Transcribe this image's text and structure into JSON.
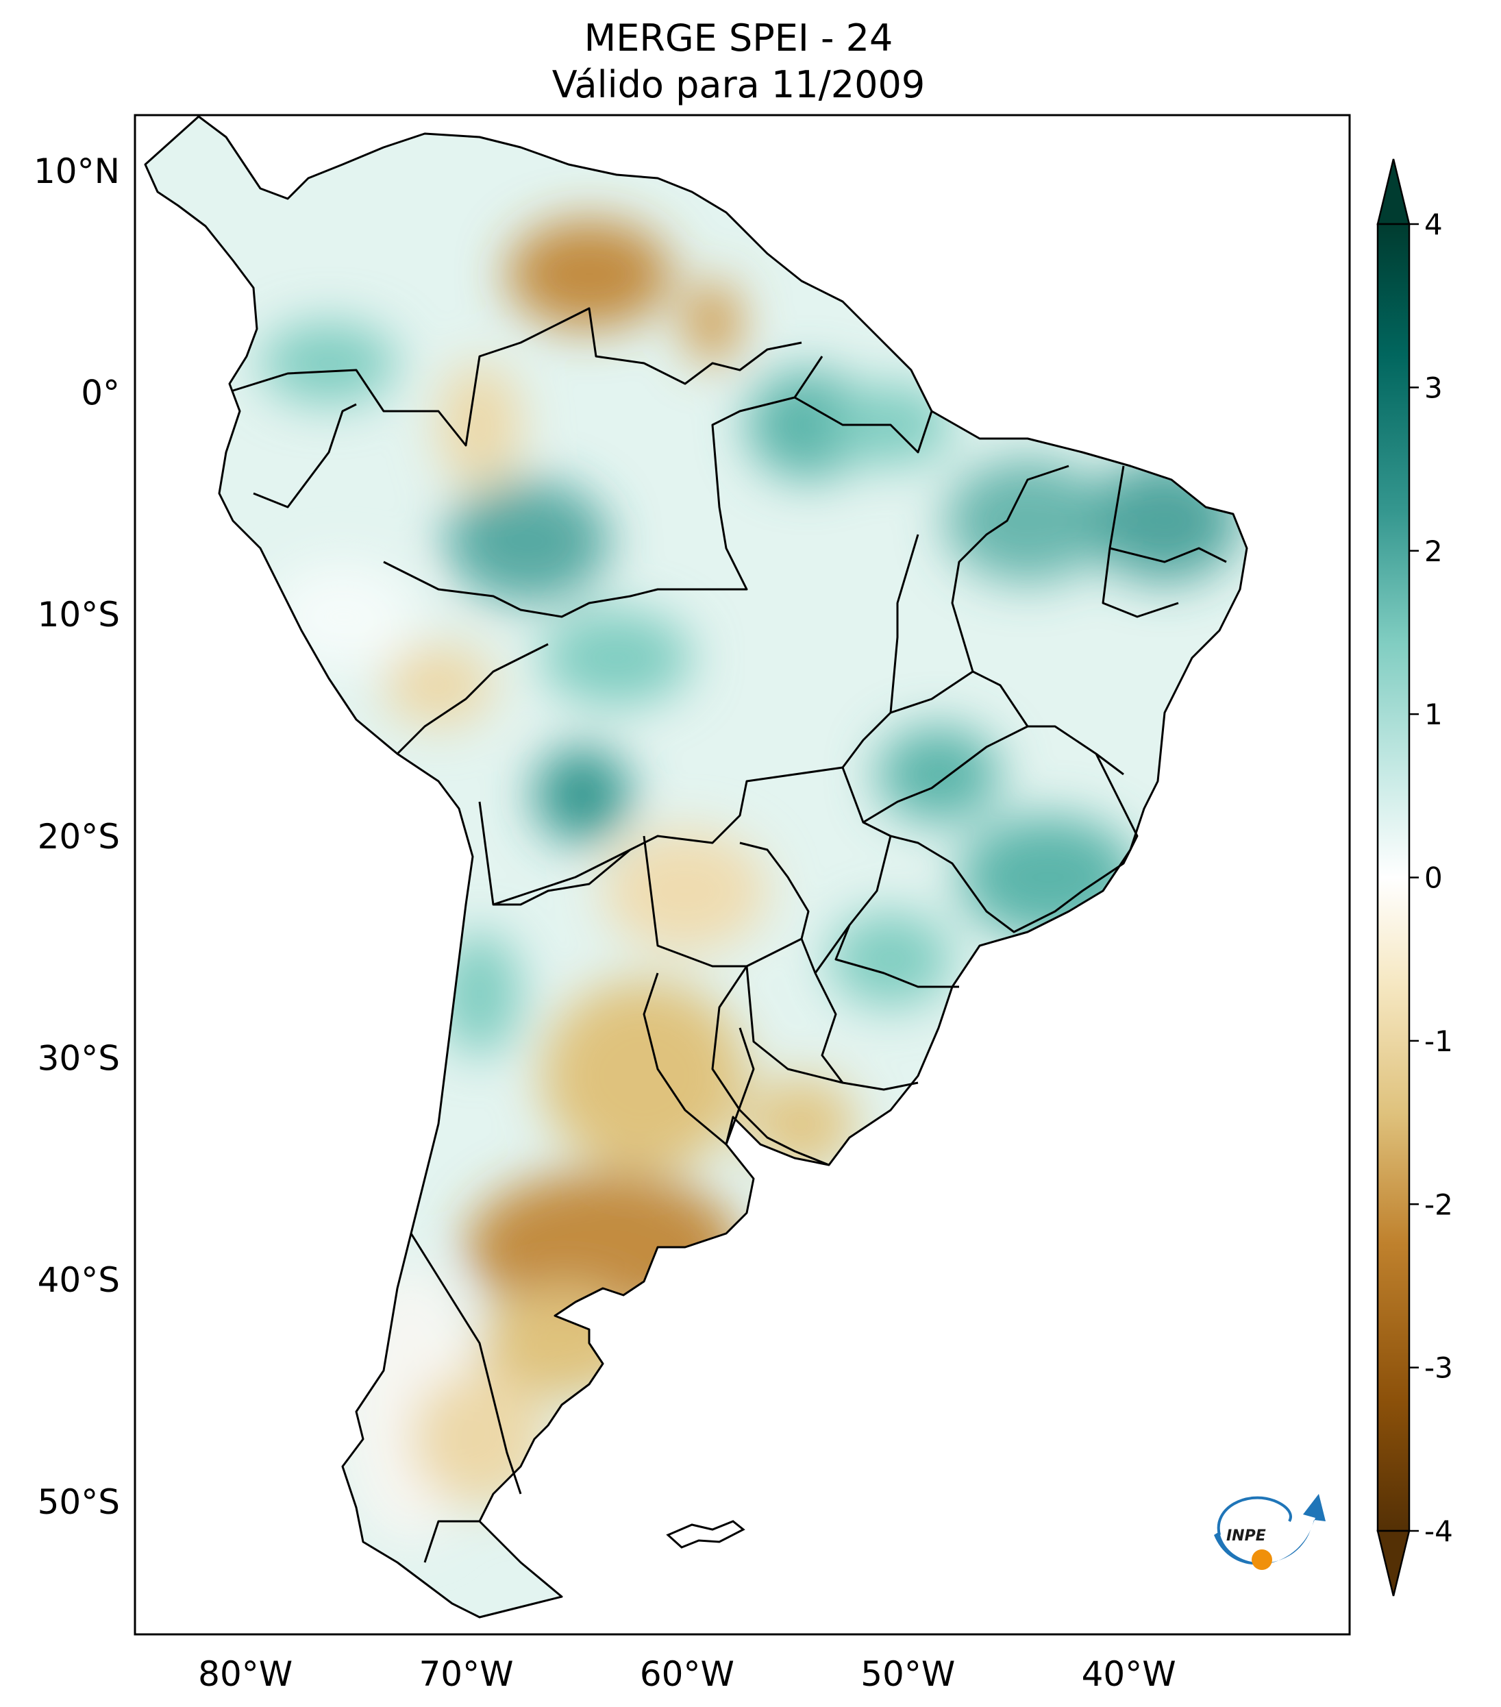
{
  "title": {
    "line1": "MERGE   SPEI - 24",
    "line2": "Válido para 11/2009"
  },
  "map": {
    "region": "South America",
    "lon_range": [
      -85,
      -30
    ],
    "lat_range": [
      -56,
      12.5
    ],
    "lat_labels": [
      {
        "lat": 10,
        "label": "10°N"
      },
      {
        "lat": 0,
        "label": "0°"
      },
      {
        "lat": -10,
        "label": "10°S"
      },
      {
        "lat": -20,
        "label": "20°S"
      },
      {
        "lat": -30,
        "label": "30°S"
      },
      {
        "lat": -40,
        "label": "40°S"
      },
      {
        "lat": -50,
        "label": "50°S"
      }
    ],
    "lon_labels": [
      {
        "lon": -80,
        "label": "80°W"
      },
      {
        "lon": -70,
        "label": "70°W"
      },
      {
        "lon": -60,
        "label": "60°W"
      },
      {
        "lon": -50,
        "label": "50°W"
      },
      {
        "lon": -40,
        "label": "40°W"
      }
    ]
  },
  "colorbar": {
    "min": -4,
    "max": 4,
    "ticks": [
      {
        "value": 4,
        "label": "4"
      },
      {
        "value": 3,
        "label": "3"
      },
      {
        "value": 2,
        "label": "2"
      },
      {
        "value": 1,
        "label": "1"
      },
      {
        "value": 0,
        "label": "0"
      },
      {
        "value": -1,
        "label": "-1"
      },
      {
        "value": -2,
        "label": "-2"
      },
      {
        "value": -3,
        "label": "-3"
      },
      {
        "value": -4,
        "label": "-4"
      }
    ],
    "colors": [
      "#003c30",
      "#01665e",
      "#35978f",
      "#80cdc1",
      "#c7eae5",
      "#ffffff",
      "#f6e8c3",
      "#dfc27d",
      "#bf812d",
      "#8c510a",
      "#543005"
    ]
  },
  "logo": {
    "text": "INPE"
  }
}
